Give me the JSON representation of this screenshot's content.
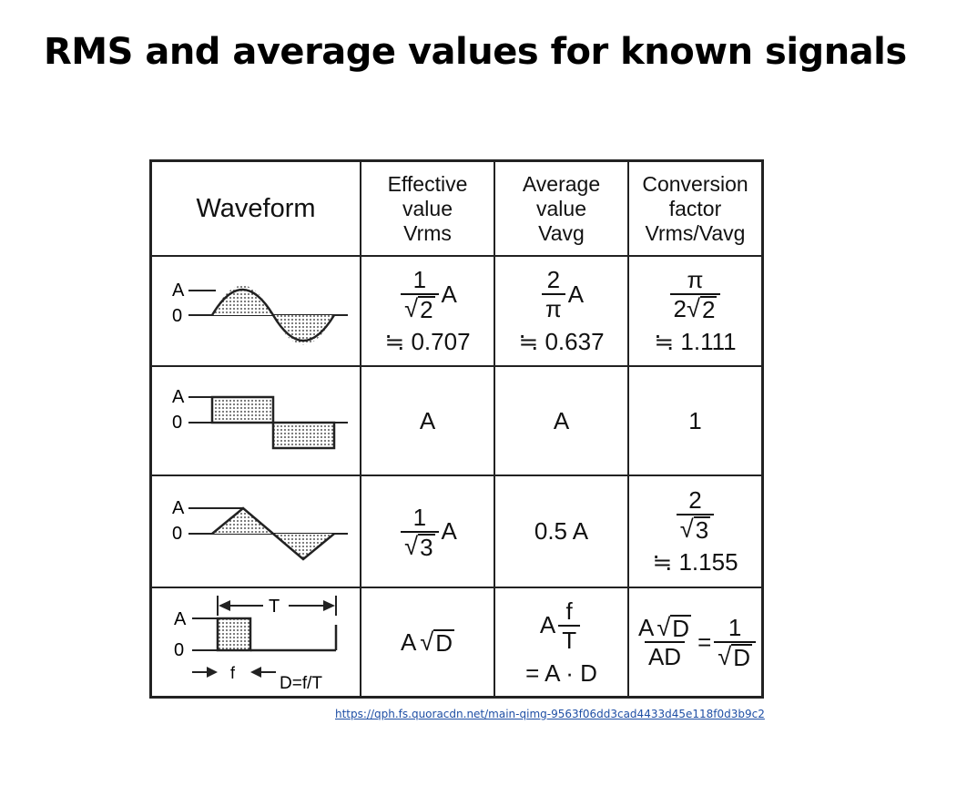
{
  "slide": {
    "title": "RMS and average values for known signals",
    "source_url": "https://qph.fs.quoracdn.net/main-qimg-9563f06dd3cad4433d45e118f0d3b9c2"
  },
  "table": {
    "headers": {
      "waveform": "Waveform",
      "effective": [
        "Effective",
        "value",
        "Vrms"
      ],
      "average": [
        "Average",
        "value",
        "Vavg"
      ],
      "conversion": [
        "Conversion",
        "factor",
        "Vrms/Vavg"
      ]
    },
    "waveform_labels": {
      "amplitude": "A",
      "zero": "0",
      "period": "T",
      "pulse_width": "f",
      "duty": "D=f/T"
    },
    "rows": [
      {
        "waveform": "sine-wave",
        "effective": {
          "num": "1",
          "den": "2",
          "suffix": "A",
          "approx": "≒ 0.707"
        },
        "average": {
          "num": "2",
          "den": "π",
          "suffix": "A",
          "approx": "≒ 0.637"
        },
        "conversion": {
          "num": "π",
          "den_coef": "2",
          "den_root": "2",
          "approx": "≒ 1.111"
        }
      },
      {
        "waveform": "square-wave",
        "effective": {
          "text": "A"
        },
        "average": {
          "text": "A"
        },
        "conversion": {
          "text": "1"
        }
      },
      {
        "waveform": "triangle-wave",
        "effective": {
          "num": "1",
          "den": "3",
          "suffix": "A"
        },
        "average": {
          "text": "0.5 A"
        },
        "conversion": {
          "num": "2",
          "den": "3",
          "approx": "≒ 1.155"
        }
      },
      {
        "waveform": "pulse-wave",
        "effective": {
          "prefix": "A",
          "root": "D"
        },
        "average": {
          "prefix": "A",
          "num": "f",
          "den": "T",
          "line2": "= A · D"
        },
        "conversion": {
          "num_prefix": "A",
          "num_root": "D",
          "den": "AD",
          "eq": "=",
          "num2": "1",
          "den2_root": "D"
        }
      }
    ]
  }
}
